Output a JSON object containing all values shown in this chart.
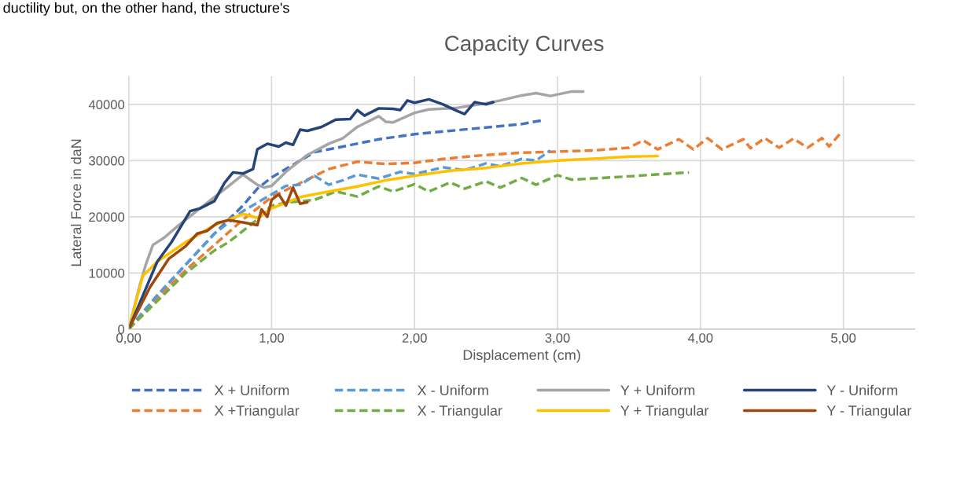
{
  "chart_data": {
    "type": "line",
    "title": "Capacity Curves",
    "xlabel": "Displacement (cm)",
    "ylabel": "Lateral Force in daN",
    "annotations": [
      "ductility but, on the other hand, the structure's"
    ],
    "xlim": [
      0,
      5.5
    ],
    "xticks": [
      {
        "value": 0,
        "label": "0,00"
      },
      {
        "value": 1,
        "label": "1,00"
      },
      {
        "value": 2,
        "label": "2,00"
      },
      {
        "value": 3,
        "label": "3,00"
      },
      {
        "value": 4,
        "label": "4,00"
      },
      {
        "value": 5,
        "label": "5,00"
      }
    ],
    "ylim": [
      0,
      45000
    ],
    "yticks": [
      0,
      10000,
      20000,
      30000,
      40000
    ],
    "grid": true,
    "legend": "bottom",
    "marker": "none",
    "series": [
      {
        "name": "X + Uniform",
        "color": "#4472c4",
        "line_style": "dashed",
        "x": [
          0,
          0.2,
          0.4,
          0.6,
          0.8,
          0.9,
          1.0,
          1.1,
          1.2,
          1.3,
          1.5,
          1.75,
          2.0,
          2.25,
          2.5,
          2.75,
          2.9
        ],
        "values": [
          0,
          6000,
          11500,
          17000,
          22000,
          25000,
          27000,
          28500,
          30000,
          31500,
          32500,
          33800,
          34700,
          35300,
          35900,
          36500,
          37200
        ]
      },
      {
        "name": "X +Triangular",
        "color": "#ed7d31",
        "line_style": "dashed",
        "x": [
          0,
          0.2,
          0.4,
          0.6,
          0.8,
          1.0,
          1.2,
          1.4,
          1.6,
          1.8,
          2.0,
          2.2,
          2.5,
          2.75,
          3.0,
          3.25,
          3.5,
          3.6,
          3.7,
          3.85,
          3.95,
          4.05,
          4.15,
          4.3,
          4.35,
          4.45,
          4.55,
          4.65,
          4.75,
          4.85,
          4.9,
          4.98
        ],
        "values": [
          0,
          5500,
          10500,
          15000,
          19500,
          23500,
          26000,
          28500,
          29800,
          29400,
          29600,
          30300,
          31000,
          31400,
          31600,
          31800,
          32300,
          33600,
          32000,
          33800,
          32000,
          34000,
          32000,
          33800,
          32200,
          34000,
          32300,
          33900,
          32300,
          34000,
          32500,
          34900
        ]
      },
      {
        "name": "X - Uniform",
        "color": "#5b9bd5",
        "line_style": "dashed",
        "x": [
          0,
          0.2,
          0.4,
          0.6,
          0.8,
          1.0,
          1.1,
          1.2,
          1.3,
          1.4,
          1.5,
          1.6,
          1.75,
          1.9,
          2.0,
          2.2,
          2.35,
          2.5,
          2.6,
          2.75,
          2.85,
          2.95
        ],
        "values": [
          0,
          6000,
          11500,
          17000,
          21000,
          24000,
          25500,
          25700,
          27300,
          25700,
          26500,
          27500,
          26800,
          28000,
          27600,
          28800,
          28300,
          29500,
          29000,
          30300,
          30000,
          31800
        ]
      },
      {
        "name": "X - Triangular",
        "color": "#70ad47",
        "line_style": "dashed",
        "x": [
          0,
          0.2,
          0.4,
          0.6,
          0.7,
          0.9,
          1.0,
          1.1,
          1.3,
          1.45,
          1.6,
          1.75,
          1.85,
          2.0,
          2.1,
          2.25,
          2.35,
          2.5,
          2.6,
          2.75,
          2.85,
          3.0,
          3.1,
          3.5,
          3.92
        ],
        "values": [
          0,
          5000,
          10000,
          14000,
          15500,
          19500,
          22000,
          22500,
          23000,
          24500,
          23600,
          25400,
          24500,
          25800,
          24500,
          26100,
          25000,
          26300,
          25200,
          26900,
          25700,
          27400,
          26600,
          27200,
          27900
        ]
      },
      {
        "name": "Y + Uniform",
        "color": "#a5a5a5",
        "line_style": "solid",
        "x": [
          0,
          0.08,
          0.12,
          0.17,
          0.25,
          0.35,
          0.5,
          0.7,
          0.8,
          0.9,
          0.95,
          1.0,
          1.1,
          1.25,
          1.4,
          1.5,
          1.6,
          1.75,
          1.8,
          1.85,
          2.0,
          2.1,
          2.3,
          2.5,
          2.6,
          2.75,
          2.85,
          2.95,
          3.1,
          3.18
        ],
        "values": [
          0,
          8000,
          11500,
          15000,
          16300,
          18500,
          21500,
          25500,
          27500,
          25700,
          25200,
          25500,
          28000,
          31000,
          33000,
          34000,
          36000,
          37900,
          36900,
          36800,
          38500,
          39100,
          39400,
          40200,
          40700,
          41600,
          42000,
          41500,
          42300,
          42300
        ]
      },
      {
        "name": "Y + Triangular",
        "color": "#ffc000",
        "line_style": "solid",
        "x": [
          0,
          0.1,
          0.2,
          0.4,
          0.6,
          0.8,
          0.9,
          1.0,
          1.2,
          1.4,
          1.6,
          1.8,
          2.0,
          2.25,
          2.5,
          2.75,
          3.0,
          3.3,
          3.5,
          3.7
        ],
        "values": [
          0,
          9500,
          12000,
          15500,
          18500,
          20500,
          19800,
          21500,
          23500,
          24500,
          25400,
          26500,
          27300,
          28200,
          28700,
          29500,
          30000,
          30400,
          30700,
          30800
        ]
      },
      {
        "name": "Y - Uniform",
        "color": "#264478",
        "line_style": "solid",
        "x": [
          0,
          0.1,
          0.2,
          0.3,
          0.43,
          0.5,
          0.6,
          0.67,
          0.73,
          0.8,
          0.87,
          0.9,
          0.97,
          1.05,
          1.1,
          1.15,
          1.2,
          1.25,
          1.35,
          1.45,
          1.55,
          1.6,
          1.65,
          1.75,
          1.85,
          1.9,
          1.95,
          2.0,
          2.1,
          2.2,
          2.3,
          2.35,
          2.42,
          2.5,
          2.55
        ],
        "values": [
          0,
          6000,
          12000,
          15500,
          21000,
          21500,
          22800,
          26000,
          27900,
          27700,
          28500,
          32000,
          33000,
          32500,
          33200,
          32800,
          35500,
          35300,
          36000,
          37300,
          37400,
          39000,
          38000,
          39300,
          39200,
          39000,
          40700,
          40300,
          40900,
          40000,
          38800,
          38300,
          40400,
          40000,
          40400
        ]
      },
      {
        "name": "Y - Triangular",
        "color": "#9e480e",
        "line_style": "solid",
        "x": [
          0,
          0.15,
          0.28,
          0.4,
          0.48,
          0.55,
          0.62,
          0.7,
          0.8,
          0.9,
          0.93,
          0.97,
          1.0,
          1.05,
          1.1,
          1.15,
          1.2,
          1.25
        ],
        "values": [
          0,
          7500,
          12500,
          14800,
          17000,
          17500,
          18900,
          19400,
          19000,
          18500,
          21300,
          20000,
          23000,
          24000,
          22000,
          25200,
          22300,
          22600
        ]
      }
    ]
  }
}
